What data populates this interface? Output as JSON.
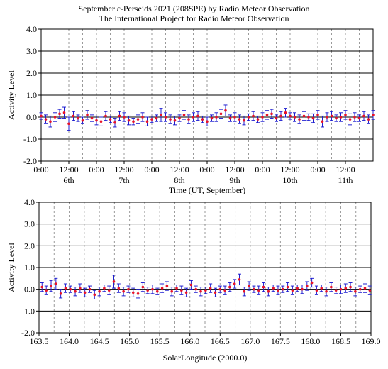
{
  "header": {
    "title_line1": "September ε-Perseids 2021 (208SPE) by Radio Meteor Observation",
    "title_line2": "The International Project for Radio Meteor Observation"
  },
  "colors": {
    "points": "#e8132a",
    "error_bars": "#1f1fd0",
    "grid_major": "#000000",
    "grid_minor": "#9a9a9a"
  },
  "chart_data": [
    {
      "type": "scatter",
      "ylabel": "Activity Level",
      "xlabel": "Time (UT, September)",
      "ylim": [
        -2.0,
        4.0
      ],
      "y_ticks": [
        "4.0",
        "3.0",
        "2.0",
        "1.0",
        "0.0",
        "-1.0",
        "-2.0"
      ],
      "x_tick_labels": [
        "0:00",
        "12:00",
        "0:00",
        "12:00",
        "0:00",
        "12:00",
        "0:00",
        "12:00",
        "0:00",
        "12:00",
        "0:00",
        "12:00"
      ],
      "day_labels": [
        "6th",
        "7th",
        "8th",
        "9th",
        "10th",
        "11th"
      ],
      "x_unit": "hours since 5 Sep 0:00 UT",
      "xlim": [
        0,
        144
      ],
      "series": [
        {
          "x": [
            0,
            2,
            4,
            6,
            8,
            10,
            12,
            14,
            16,
            18,
            20,
            22,
            24,
            26,
            28,
            30,
            32,
            34,
            36,
            38,
            40,
            42,
            44,
            46,
            48,
            50,
            52,
            54,
            56,
            58,
            60,
            62,
            64,
            66,
            68,
            70,
            72,
            74,
            76,
            78,
            80,
            82,
            84,
            86,
            88,
            90,
            92,
            94,
            96,
            98,
            100,
            102,
            104,
            106,
            108,
            110,
            112,
            114,
            116,
            118,
            120,
            122,
            124,
            126,
            128,
            130,
            132,
            134,
            136,
            138,
            140,
            142,
            144
          ],
          "y": [
            0.05,
            -0.1,
            -0.2,
            0.0,
            0.15,
            0.2,
            -0.3,
            0.05,
            -0.05,
            -0.15,
            0.1,
            -0.05,
            -0.15,
            -0.2,
            0.05,
            -0.1,
            -0.25,
            0.05,
            0.0,
            -0.15,
            -0.2,
            -0.1,
            0.0,
            -0.2,
            -0.1,
            -0.05,
            0.1,
            0.0,
            -0.1,
            -0.15,
            -0.05,
            0.1,
            -0.1,
            0.0,
            0.05,
            -0.1,
            -0.2,
            -0.05,
            0.0,
            0.15,
            0.3,
            -0.05,
            0.0,
            -0.1,
            -0.15,
            0.0,
            0.05,
            -0.1,
            0.0,
            0.1,
            0.15,
            -0.05,
            0.05,
            0.2,
            0.05,
            0.0,
            -0.1,
            0.05,
            0.0,
            -0.05,
            0.1,
            -0.2,
            0.0,
            0.05,
            -0.05,
            0.0,
            0.1,
            -0.1,
            0.0,
            -0.05,
            0.05,
            -0.1,
            0.1
          ],
          "err": [
            0.15,
            0.2,
            0.25,
            0.2,
            0.2,
            0.25,
            0.3,
            0.2,
            0.15,
            0.15,
            0.2,
            0.15,
            0.2,
            0.2,
            0.2,
            0.15,
            0.2,
            0.2,
            0.2,
            0.2,
            0.15,
            0.2,
            0.2,
            0.2,
            0.15,
            0.15,
            0.3,
            0.2,
            0.2,
            0.2,
            0.15,
            0.2,
            0.2,
            0.2,
            0.2,
            0.15,
            0.2,
            0.15,
            0.2,
            0.2,
            0.25,
            0.15,
            0.2,
            0.2,
            0.2,
            0.15,
            0.2,
            0.15,
            0.2,
            0.2,
            0.2,
            0.15,
            0.2,
            0.2,
            0.15,
            0.2,
            0.2,
            0.2,
            0.15,
            0.2,
            0.2,
            0.25,
            0.2,
            0.2,
            0.15,
            0.2,
            0.2,
            0.25,
            0.2,
            0.15,
            0.2,
            0.2,
            0.2
          ]
        }
      ]
    },
    {
      "type": "scatter",
      "ylabel": "Activity Level",
      "xlabel": "SolarLongitude  (2000.0)",
      "ylim": [
        -2.0,
        4.0
      ],
      "y_ticks": [
        "4.0",
        "3.0",
        "2.0",
        "1.0",
        "0.0",
        "-1.0",
        "-2.0"
      ],
      "xlim": [
        163.5,
        169.0
      ],
      "x_ticks": [
        "163.5",
        "164.0",
        "164.5",
        "165.0",
        "165.5",
        "166.0",
        "166.5",
        "167.0",
        "167.5",
        "168.0",
        "168.5",
        "169.0"
      ],
      "series": [
        {
          "x": [
            163.55,
            163.62,
            163.7,
            163.78,
            163.86,
            163.94,
            164.02,
            164.1,
            164.18,
            164.26,
            164.34,
            164.42,
            164.5,
            164.58,
            164.66,
            164.74,
            164.82,
            164.9,
            164.98,
            165.06,
            165.14,
            165.22,
            165.3,
            165.38,
            165.46,
            165.54,
            165.62,
            165.7,
            165.78,
            165.86,
            165.94,
            166.02,
            166.1,
            166.18,
            166.26,
            166.34,
            166.42,
            166.5,
            166.58,
            166.66,
            166.74,
            166.82,
            166.9,
            166.98,
            167.06,
            167.14,
            167.22,
            167.3,
            167.38,
            167.46,
            167.54,
            167.62,
            167.7,
            167.78,
            167.86,
            167.94,
            168.02,
            168.1,
            168.18,
            168.26,
            168.34,
            168.42,
            168.5,
            168.58,
            168.66,
            168.74,
            168.82,
            168.9,
            168.98
          ],
          "y": [
            0.1,
            -0.05,
            0.15,
            0.25,
            -0.2,
            0.05,
            0.0,
            -0.1,
            0.05,
            -0.15,
            0.0,
            -0.25,
            -0.1,
            0.05,
            -0.05,
            0.35,
            0.05,
            -0.1,
            0.0,
            -0.15,
            -0.2,
            0.1,
            -0.05,
            0.0,
            -0.1,
            0.05,
            0.15,
            -0.1,
            0.05,
            -0.05,
            -0.15,
            0.2,
            0.0,
            -0.1,
            -0.05,
            0.05,
            -0.15,
            0.0,
            -0.05,
            0.1,
            0.25,
            0.45,
            -0.1,
            0.15,
            0.0,
            -0.05,
            0.1,
            -0.1,
            0.05,
            -0.05,
            0.0,
            0.1,
            -0.05,
            0.05,
            0.0,
            0.15,
            0.3,
            -0.05,
            0.05,
            -0.1,
            0.1,
            -0.05,
            0.0,
            0.05,
            0.1,
            -0.1,
            0.0,
            0.05,
            -0.05
          ],
          "err": [
            0.2,
            0.2,
            0.25,
            0.25,
            0.2,
            0.2,
            0.15,
            0.2,
            0.2,
            0.2,
            0.15,
            0.2,
            0.2,
            0.15,
            0.2,
            0.3,
            0.2,
            0.2,
            0.15,
            0.2,
            0.2,
            0.2,
            0.15,
            0.2,
            0.15,
            0.2,
            0.2,
            0.2,
            0.15,
            0.2,
            0.2,
            0.2,
            0.15,
            0.2,
            0.15,
            0.2,
            0.2,
            0.15,
            0.2,
            0.2,
            0.2,
            0.25,
            0.2,
            0.2,
            0.15,
            0.2,
            0.2,
            0.2,
            0.15,
            0.2,
            0.15,
            0.2,
            0.2,
            0.15,
            0.2,
            0.2,
            0.2,
            0.2,
            0.15,
            0.2,
            0.2,
            0.15,
            0.2,
            0.2,
            0.2,
            0.2,
            0.15,
            0.2,
            0.2
          ]
        }
      ]
    }
  ]
}
